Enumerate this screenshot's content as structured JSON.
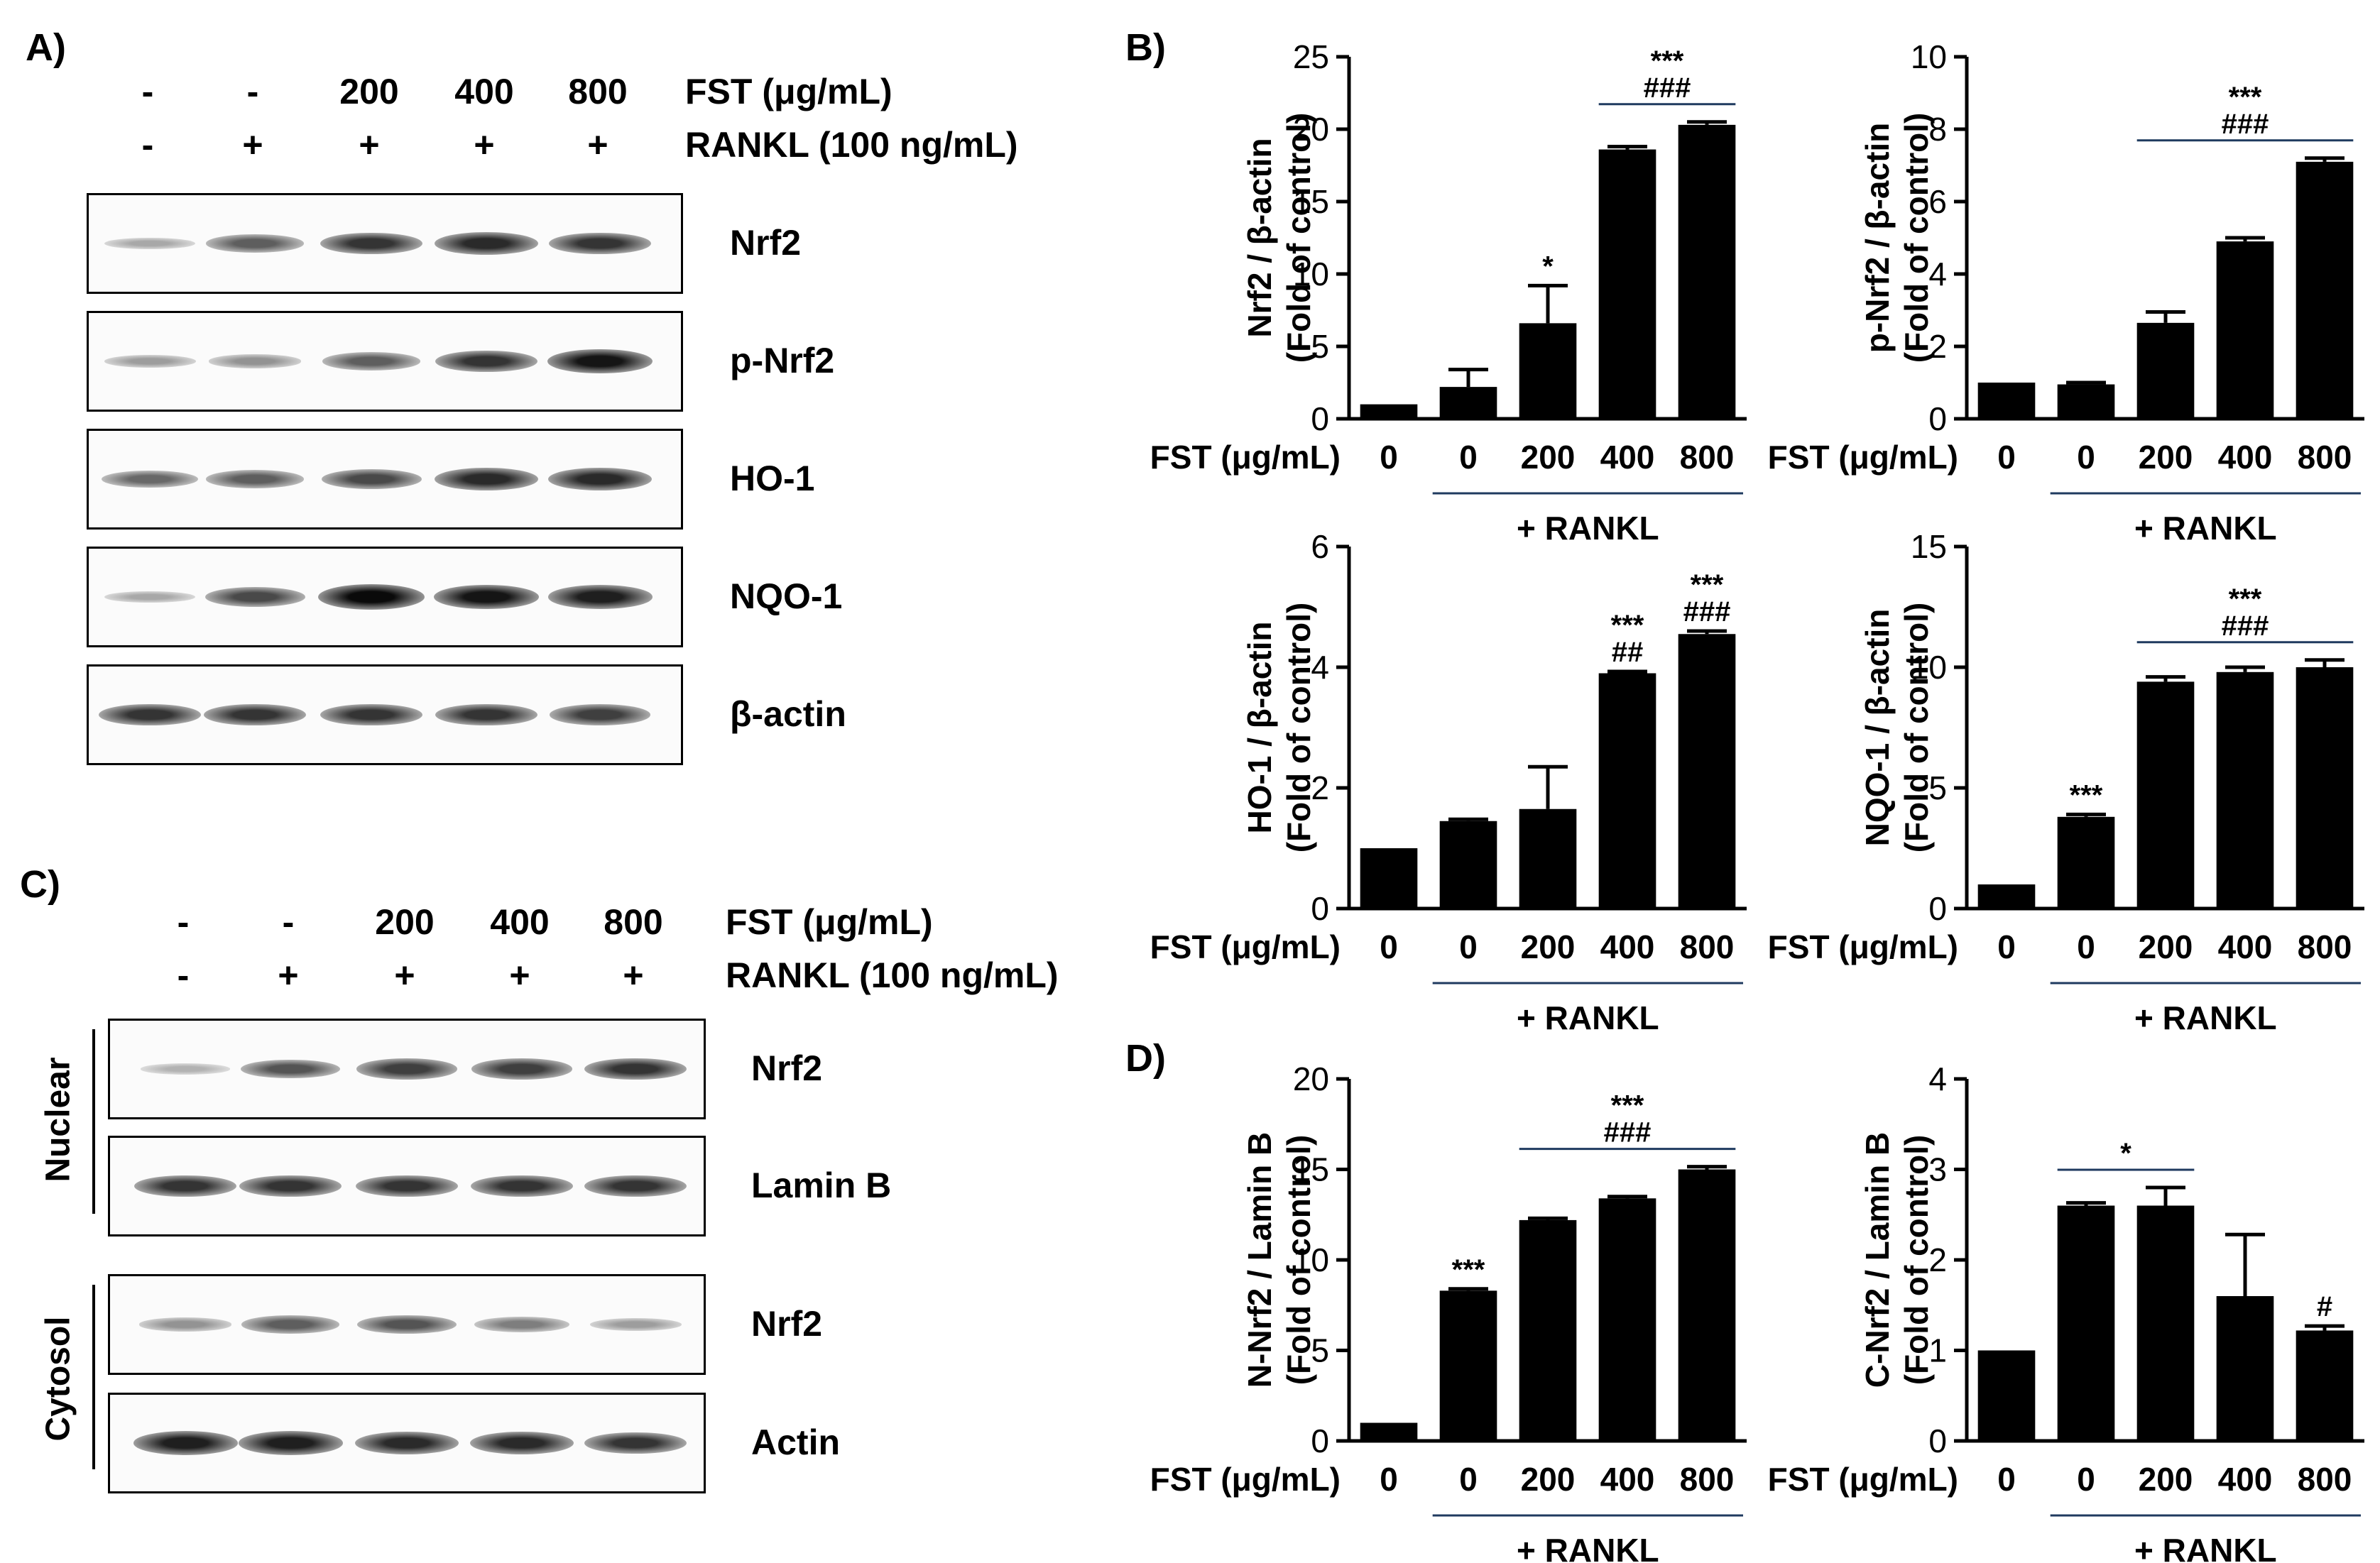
{
  "panels": {
    "A": "A)",
    "B": "B)",
    "C": "C)",
    "D": "D)"
  },
  "panelA": {
    "fst_header": [
      "-",
      "-",
      "200",
      "400",
      "800"
    ],
    "fst_label": "FST (μg/mL)",
    "rankl_header": [
      "-",
      "+",
      "+",
      "+",
      "+"
    ],
    "rankl_label": "RANKL (100 ng/mL)",
    "blots": [
      {
        "label": "Nrf2",
        "intensity": [
          0.25,
          0.6,
          0.8,
          0.85,
          0.8
        ]
      },
      {
        "label": "p-Nrf2",
        "intensity": [
          0.3,
          0.35,
          0.6,
          0.8,
          0.95
        ]
      },
      {
        "label": "HO-1",
        "intensity": [
          0.55,
          0.6,
          0.7,
          0.85,
          0.85
        ]
      },
      {
        "label": "NQO-1",
        "intensity": [
          0.25,
          0.7,
          1.0,
          0.95,
          0.9
        ]
      },
      {
        "label": "β-actin",
        "intensity": [
          0.8,
          0.8,
          0.8,
          0.8,
          0.75
        ]
      }
    ]
  },
  "panelC": {
    "fst_header": [
      "-",
      "-",
      "200",
      "400",
      "800"
    ],
    "fst_label": "FST (μg/mL)",
    "rankl_header": [
      "-",
      "+",
      "+",
      "+",
      "+"
    ],
    "rankl_label": "RANKL (100 ng/mL)",
    "nuclear_label": "Nuclear",
    "cytosol_label": "Cytosol",
    "blots": [
      {
        "label": "Nrf2",
        "intensity": [
          0.2,
          0.65,
          0.75,
          0.75,
          0.8
        ]
      },
      {
        "label": "Lamin B",
        "intensity": [
          0.8,
          0.8,
          0.8,
          0.8,
          0.8
        ]
      },
      {
        "label": "Nrf2",
        "intensity": [
          0.35,
          0.6,
          0.65,
          0.45,
          0.3
        ]
      },
      {
        "label": "Actin",
        "intensity": [
          0.9,
          0.9,
          0.85,
          0.85,
          0.8
        ]
      }
    ]
  },
  "chart_data": [
    {
      "type": "bar",
      "ylabel": [
        "Nrf2 / β-actin",
        "(Fold of control)"
      ],
      "xlabel_prefix": "FST (μg/mL)",
      "categories": [
        "0",
        "0",
        "200",
        "400",
        "800"
      ],
      "values": [
        1.0,
        2.2,
        6.6,
        18.6,
        20.3
      ],
      "errors": [
        0.0,
        1.2,
        2.6,
        0.2,
        0.2
      ],
      "ylim": [
        0,
        25
      ],
      "yticks": [
        0,
        5,
        10,
        15,
        20,
        25
      ],
      "group_label": "+ RANKL",
      "annotations": [
        {
          "bar": 2,
          "lines": [
            "*"
          ]
        },
        {
          "from": 3,
          "to": 4,
          "lines": [
            "***",
            "###"
          ]
        }
      ]
    },
    {
      "type": "bar",
      "ylabel": [
        "p-Nrf2 / β-actin",
        "(Fold of control)"
      ],
      "xlabel_prefix": "FST (μg/mL)",
      "categories": [
        "0",
        "0",
        "200",
        "400",
        "800"
      ],
      "values": [
        1.0,
        0.95,
        2.65,
        4.9,
        7.1
      ],
      "errors": [
        0.0,
        0.05,
        0.3,
        0.1,
        0.1
      ],
      "ylim": [
        0,
        10
      ],
      "yticks": [
        0,
        2,
        4,
        6,
        8,
        10
      ],
      "group_label": "+ RANKL",
      "annotations": [
        {
          "from": 2,
          "to": 4,
          "lines": [
            "***",
            "###"
          ]
        }
      ]
    },
    {
      "type": "bar",
      "ylabel": [
        "HO-1 / β-actin",
        "(Fold of control)"
      ],
      "xlabel_prefix": "FST (μg/mL)",
      "categories": [
        "0",
        "0",
        "200",
        "400",
        "800"
      ],
      "values": [
        1.0,
        1.45,
        1.65,
        3.9,
        4.55
      ],
      "errors": [
        0.0,
        0.03,
        0.7,
        0.03,
        0.05
      ],
      "ylim": [
        0,
        6
      ],
      "yticks": [
        0,
        2,
        4,
        6
      ],
      "group_label": "+ RANKL",
      "annotations": [
        {
          "bar": 3,
          "lines": [
            "***",
            "##"
          ]
        },
        {
          "bar": 4,
          "lines": [
            "***",
            "###"
          ]
        }
      ]
    },
    {
      "type": "bar",
      "ylabel": [
        "NQO-1 / β-actin",
        "(Fold of control)"
      ],
      "xlabel_prefix": "FST (μg/mL)",
      "categories": [
        "0",
        "0",
        "200",
        "400",
        "800"
      ],
      "values": [
        1.0,
        3.8,
        9.4,
        9.8,
        10.0
      ],
      "errors": [
        0.0,
        0.1,
        0.2,
        0.2,
        0.3
      ],
      "ylim": [
        0,
        15
      ],
      "yticks": [
        0,
        5,
        10,
        15
      ],
      "group_label": "+ RANKL",
      "annotations": [
        {
          "bar": 1,
          "lines": [
            "***"
          ]
        },
        {
          "from": 2,
          "to": 4,
          "lines": [
            "***",
            "###"
          ]
        }
      ]
    },
    {
      "type": "bar",
      "ylabel": [
        "N-Nrf2 / Lamin B",
        "(Fold of control)"
      ],
      "xlabel_prefix": "FST (μg/mL)",
      "categories": [
        "0",
        "0",
        "200",
        "400",
        "800"
      ],
      "values": [
        1.0,
        8.3,
        12.2,
        13.4,
        15.0
      ],
      "errors": [
        0.0,
        0.1,
        0.1,
        0.1,
        0.15
      ],
      "ylim": [
        0,
        20
      ],
      "yticks": [
        0,
        5,
        10,
        15,
        20
      ],
      "group_label": "+ RANKL",
      "annotations": [
        {
          "bar": 1,
          "lines": [
            "***"
          ]
        },
        {
          "from": 2,
          "to": 4,
          "lines": [
            "***",
            "###"
          ]
        }
      ]
    },
    {
      "type": "bar",
      "ylabel": [
        "C-Nrf2 / Lamin B",
        "(Fold of control)"
      ],
      "xlabel_prefix": "FST (μg/mL)",
      "categories": [
        "0",
        "0",
        "200",
        "400",
        "800"
      ],
      "values": [
        1.0,
        2.6,
        2.6,
        1.6,
        1.22
      ],
      "errors": [
        0.0,
        0.03,
        0.2,
        0.68,
        0.05
      ],
      "ylim": [
        0,
        4
      ],
      "yticks": [
        0,
        1,
        2,
        3,
        4
      ],
      "group_label": "+ RANKL",
      "annotations": [
        {
          "from": 1,
          "to": 2,
          "lines": [
            "*"
          ]
        },
        {
          "bar": 4,
          "lines": [
            "#"
          ]
        }
      ]
    }
  ]
}
